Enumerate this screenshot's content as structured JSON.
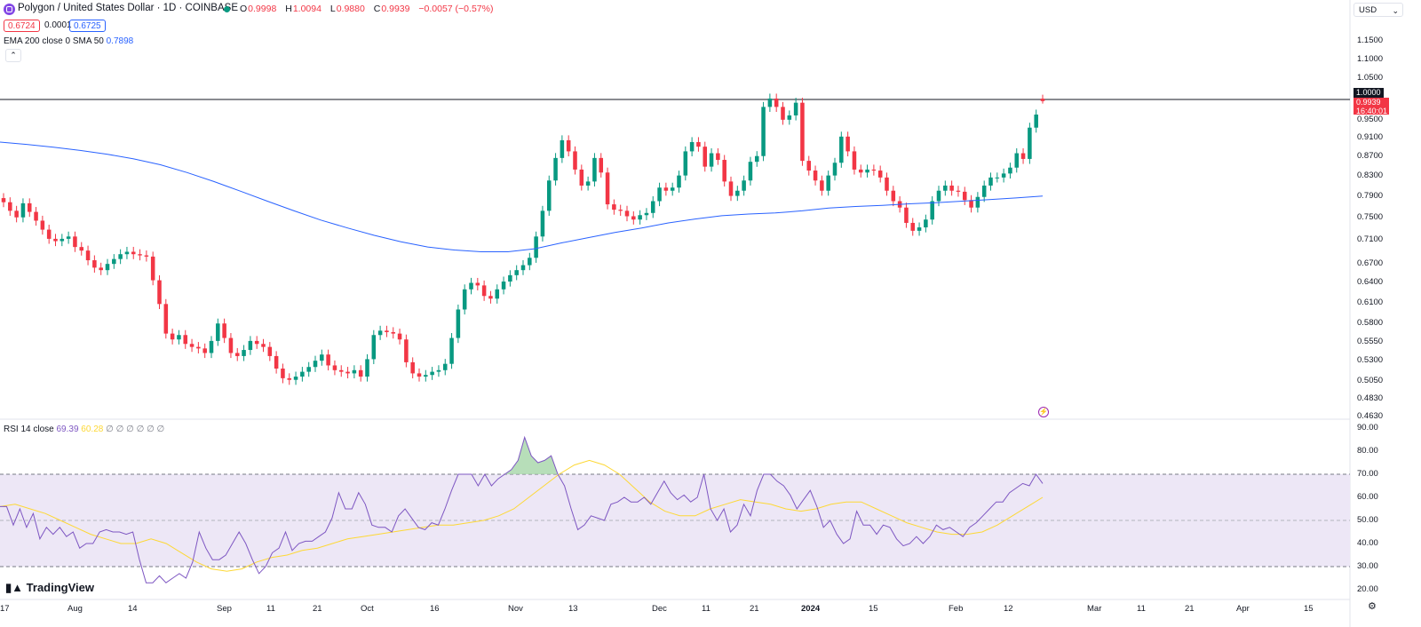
{
  "header": {
    "title": "Polygon / United States Dollar · 1D · COINBASE",
    "ohlc": [
      {
        "key": "O",
        "value": "0.9998"
      },
      {
        "key": "H",
        "value": "1.0094"
      },
      {
        "key": "L",
        "value": "0.9880"
      },
      {
        "key": "C",
        "value": "0.9939"
      }
    ],
    "change": "−0.0057 (−0.57%)",
    "sell": "0.6724",
    "spread": "0.0001",
    "buy": "0.6725",
    "indicator_name": "EMA 200 close 0 SMA 50",
    "indicator_value": "0.7898",
    "collapse_icon": "chevron-up-icon"
  },
  "currency": {
    "label": "USD",
    "icon": "chevron-down-icon"
  },
  "price_axis": {
    "labels": [
      "1.1500",
      "1.1000",
      "1.0500",
      "1.0000",
      "0.9500",
      "0.9100",
      "0.8700",
      "0.8300",
      "0.7900",
      "0.7500",
      "0.7100",
      "0.6700",
      "0.6400",
      "0.6100",
      "0.5800",
      "0.5550",
      "0.5300",
      "0.5050",
      "0.4830",
      "0.4630"
    ],
    "hline_tag": "1.0000",
    "last_price": "0.9939",
    "countdown": "16:40:01"
  },
  "rsi": {
    "label": "RSI 14 close",
    "value": "69.39",
    "ma_value": "60.28",
    "extra": "∅ ∅ ∅ ∅ ∅ ∅",
    "axis_labels": [
      "90.00",
      "80.00",
      "70.00",
      "60.00",
      "50.00",
      "40.00",
      "30.00",
      "20.00"
    ]
  },
  "time_axis": [
    "17",
    "Aug",
    "14",
    "Sep",
    "11",
    "21",
    "Oct",
    "16",
    "Nov",
    "13",
    "Dec",
    "11",
    "21",
    "2024",
    "15",
    "Feb",
    "12",
    "Mar",
    "11",
    "21",
    "Apr",
    "15"
  ],
  "branding": {
    "logo": "TradingView",
    "logo_icon": "tradingview-logo-icon"
  },
  "colors": {
    "up": "#089981",
    "down": "#f23645",
    "ema": "#2962ff",
    "rsi_line": "#7e57c2",
    "rsi_ma": "#fdd835",
    "rsi_band": "#ede7f6"
  },
  "chart_data": {
    "type": "candlestick",
    "symbol": "Polygon / United States Dollar",
    "interval": "1D",
    "exchange": "COINBASE",
    "last": {
      "open": 0.9998,
      "high": 1.0094,
      "low": 0.988,
      "close": 0.9939
    },
    "price_range": [
      0.463,
      1.15
    ],
    "price_scale": "log",
    "closes_estimated": [
      0.778,
      0.762,
      0.75,
      0.776,
      0.76,
      0.744,
      0.728,
      0.712,
      0.708,
      0.712,
      0.716,
      0.698,
      0.692,
      0.676,
      0.664,
      0.66,
      0.67,
      0.678,
      0.686,
      0.69,
      0.686,
      0.684,
      0.682,
      0.644,
      0.608,
      0.566,
      0.558,
      0.564,
      0.552,
      0.548,
      0.546,
      0.54,
      0.556,
      0.58,
      0.56,
      0.54,
      0.536,
      0.544,
      0.556,
      0.552,
      0.548,
      0.536,
      0.52,
      0.508,
      0.506,
      0.51,
      0.516,
      0.522,
      0.53,
      0.538,
      0.524,
      0.518,
      0.516,
      0.514,
      0.518,
      0.51,
      0.532,
      0.564,
      0.57,
      0.568,
      0.566,
      0.558,
      0.528,
      0.514,
      0.51,
      0.512,
      0.516,
      0.518,
      0.526,
      0.56,
      0.6,
      0.63,
      0.64,
      0.636,
      0.62,
      0.616,
      0.63,
      0.642,
      0.652,
      0.66,
      0.668,
      0.68,
      0.716,
      0.762,
      0.82,
      0.866,
      0.904,
      0.88,
      0.842,
      0.81,
      0.818,
      0.866,
      0.836,
      0.774,
      0.764,
      0.762,
      0.752,
      0.746,
      0.754,
      0.758,
      0.78,
      0.806,
      0.8,
      0.806,
      0.83,
      0.88,
      0.9,
      0.89,
      0.848,
      0.876,
      0.862,
      0.818,
      0.79,
      0.8,
      0.82,
      0.858,
      0.87,
      0.98,
      1.0,
      0.98,
      0.95,
      0.96,
      0.99,
      0.86,
      0.84,
      0.82,
      0.8,
      0.83,
      0.856,
      0.912,
      0.88,
      0.842,
      0.836,
      0.842,
      0.84,
      0.826,
      0.8,
      0.78,
      0.768,
      0.74,
      0.726,
      0.732,
      0.746,
      0.78,
      0.8,
      0.81,
      0.8,
      0.798,
      0.782,
      0.768,
      0.788,
      0.81,
      0.826,
      0.826,
      0.834,
      0.846,
      0.876,
      0.864,
      0.932,
      0.962,
      0.9939
    ],
    "ema_label": "EMA 200",
    "ema_value": 0.7898,
    "ema_estimated": [
      0.9,
      0.895,
      0.889,
      0.882,
      0.874,
      0.864,
      0.852,
      0.836,
      0.818,
      0.799,
      0.78,
      0.762,
      0.745,
      0.731,
      0.718,
      0.707,
      0.698,
      0.693,
      0.69,
      0.69,
      0.695,
      0.705,
      0.714,
      0.723,
      0.731,
      0.74,
      0.747,
      0.753,
      0.756,
      0.758,
      0.762,
      0.767,
      0.77,
      0.772,
      0.775,
      0.777,
      0.78,
      0.783,
      0.786,
      0.7898
    ],
    "rsi": {
      "period": 14,
      "value": 69.39,
      "ma": 60.28,
      "range": [
        20,
        90
      ],
      "overbought": 70,
      "middle": 50,
      "oversold": 30,
      "values_estimated": [
        56,
        56,
        48,
        55,
        47,
        53,
        42,
        47,
        44,
        47,
        43,
        45,
        38,
        40,
        40,
        45,
        46,
        45,
        45,
        44,
        45,
        33,
        23,
        23,
        26,
        23,
        25,
        27,
        25,
        32,
        45,
        38,
        33,
        33,
        35,
        40,
        45,
        40,
        33,
        27,
        30,
        36,
        38,
        45,
        37,
        40,
        41,
        41,
        43,
        45,
        51,
        62,
        55,
        55,
        62,
        57,
        48,
        47,
        47,
        45,
        52,
        55,
        51,
        47,
        46,
        49,
        48,
        55,
        63,
        70,
        70,
        70,
        65,
        70,
        65,
        68,
        70,
        72,
        76,
        86,
        78,
        75,
        76,
        78,
        70,
        65,
        55,
        46,
        48,
        52,
        51,
        50,
        57,
        58,
        60,
        58,
        58,
        60,
        57,
        62,
        67,
        62,
        59,
        61,
        58,
        60,
        70,
        55,
        50,
        55,
        45,
        48,
        57,
        52,
        63,
        70,
        70,
        67,
        65,
        61,
        55,
        59,
        63,
        56,
        47,
        50,
        44,
        40,
        42,
        54,
        48,
        48,
        44,
        48,
        47,
        42,
        39,
        40,
        43,
        40,
        43,
        48,
        46,
        47,
        45,
        43,
        47,
        49,
        52,
        55,
        58,
        58,
        62,
        64,
        66,
        65,
        70,
        66
      ],
      "ma_estimated": [
        56,
        57,
        55,
        53,
        50,
        47,
        44,
        42,
        40,
        40,
        42,
        40,
        36,
        32,
        29,
        28,
        29,
        32,
        34,
        35,
        37,
        38,
        40,
        42,
        43,
        44,
        45,
        46,
        47,
        48,
        48,
        49,
        50,
        52,
        55,
        60,
        65,
        70,
        74,
        76,
        74,
        70,
        64,
        58,
        54,
        52,
        52,
        55,
        57,
        59,
        58,
        57,
        55,
        54,
        55,
        57,
        58,
        58,
        55,
        52,
        49,
        47,
        45,
        44,
        44,
        45,
        48,
        52,
        56,
        60
      ]
    }
  }
}
